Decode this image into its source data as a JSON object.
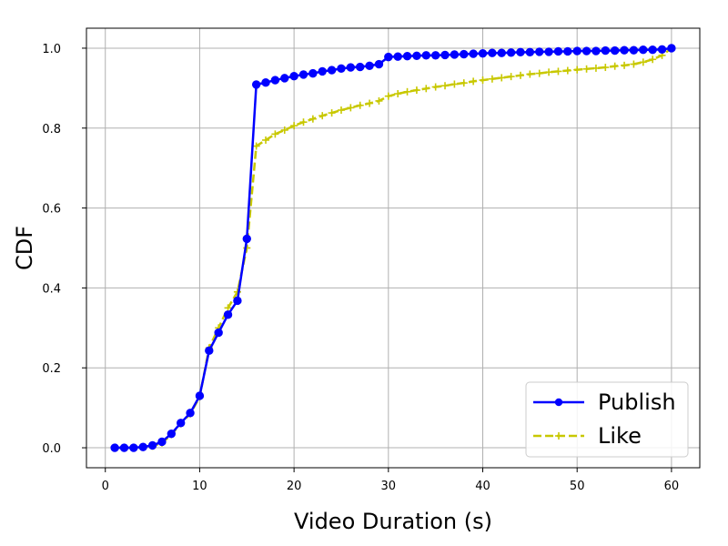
{
  "chart_data": {
    "type": "line",
    "title": "",
    "xlabel": "Video Duration (s)",
    "ylabel": "CDF",
    "xlim": [
      -2,
      63
    ],
    "ylim": [
      -0.05,
      1.05
    ],
    "xticks": [
      0,
      10,
      20,
      30,
      40,
      50,
      60
    ],
    "yticks": [
      0.0,
      0.2,
      0.4,
      0.6,
      0.8,
      1.0
    ],
    "xtick_labels": [
      "0",
      "10",
      "20",
      "30",
      "40",
      "50",
      "60"
    ],
    "ytick_labels": [
      "0.0",
      "0.2",
      "0.4",
      "0.6",
      "0.8",
      "1.0"
    ],
    "grid": true,
    "legend_position": "bottom-right",
    "x": [
      1,
      2,
      3,
      4,
      5,
      6,
      7,
      8,
      9,
      10,
      11,
      12,
      13,
      14,
      15,
      16,
      17,
      18,
      19,
      20,
      21,
      22,
      23,
      24,
      25,
      26,
      27,
      28,
      29,
      30,
      31,
      32,
      33,
      34,
      35,
      36,
      37,
      38,
      39,
      40,
      41,
      42,
      43,
      44,
      45,
      46,
      47,
      48,
      49,
      50,
      51,
      52,
      53,
      54,
      55,
      56,
      57,
      58,
      59,
      60
    ],
    "series": [
      {
        "name": "Publish",
        "color": "#0000ff",
        "linestyle": "solid",
        "marker": "circle",
        "values": [
          0.0,
          0.0,
          0.0,
          0.002,
          0.006,
          0.015,
          0.035,
          0.062,
          0.087,
          0.13,
          0.243,
          0.288,
          0.333,
          0.368,
          0.523,
          0.909,
          0.914,
          0.92,
          0.925,
          0.93,
          0.934,
          0.937,
          0.942,
          0.945,
          0.949,
          0.952,
          0.953,
          0.956,
          0.96,
          0.978,
          0.979,
          0.98,
          0.981,
          0.982,
          0.982,
          0.983,
          0.984,
          0.985,
          0.986,
          0.987,
          0.988,
          0.988,
          0.989,
          0.99,
          0.99,
          0.991,
          0.991,
          0.992,
          0.992,
          0.993,
          0.993,
          0.993,
          0.994,
          0.994,
          0.995,
          0.995,
          0.996,
          0.996,
          0.997,
          1.0
        ]
      },
      {
        "name": "Like",
        "color": "#c8c800",
        "linestyle": "dashed",
        "marker": "plus",
        "values": [
          0.0,
          0.0,
          0.0,
          0.001,
          0.004,
          0.012,
          0.033,
          0.06,
          0.085,
          0.127,
          0.25,
          0.3,
          0.35,
          0.39,
          0.5,
          0.755,
          0.77,
          0.785,
          0.795,
          0.806,
          0.815,
          0.823,
          0.831,
          0.838,
          0.845,
          0.851,
          0.857,
          0.862,
          0.868,
          0.88,
          0.886,
          0.891,
          0.895,
          0.899,
          0.903,
          0.906,
          0.91,
          0.913,
          0.917,
          0.92,
          0.923,
          0.926,
          0.929,
          0.932,
          0.935,
          0.937,
          0.94,
          0.942,
          0.944,
          0.946,
          0.948,
          0.95,
          0.952,
          0.955,
          0.957,
          0.96,
          0.965,
          0.972,
          0.982,
          1.0
        ]
      }
    ]
  }
}
